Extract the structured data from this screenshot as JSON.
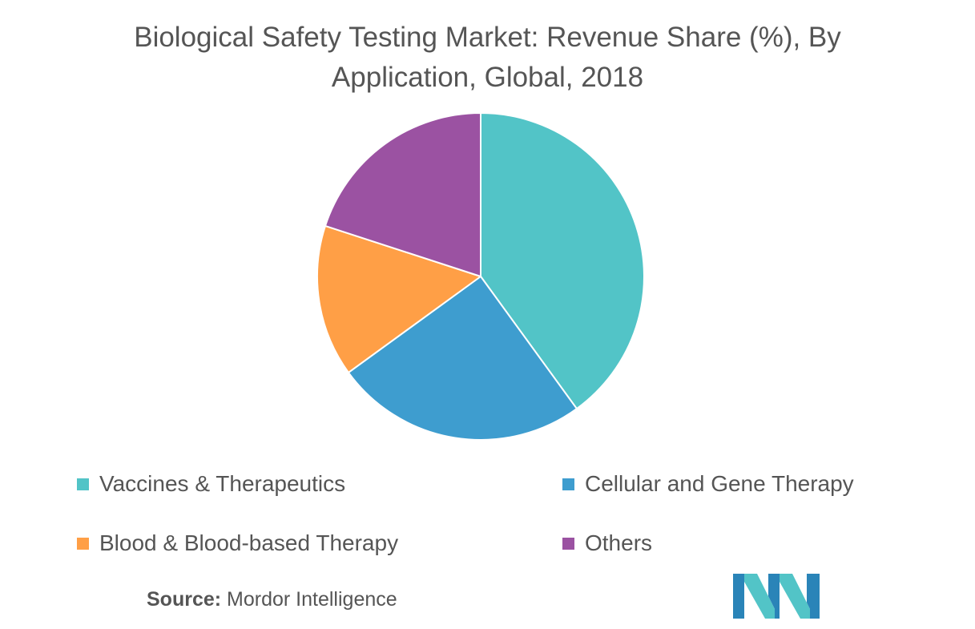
{
  "chart_data": {
    "type": "pie",
    "title": "Biological Safety Testing Market: Revenue Share (%), By Application, Global, 2018",
    "title_lines": [
      "Biological Safety Testing Market: Revenue Share (%), By",
      "Application, Global, 2018"
    ],
    "start_angle_deg": 0,
    "direction": "clockwise",
    "legend_position": "bottom",
    "slices": [
      {
        "label": "Vaccines & Therapeutics",
        "value": 40,
        "color": "#52C4C7"
      },
      {
        "label": "Cellular and Gene Therapy",
        "value": 25,
        "color": "#3E9DCF"
      },
      {
        "label": "Blood & Blood-based Therapy",
        "value": 15,
        "color": "#FF9F46"
      },
      {
        "label": "Others",
        "value": 20,
        "color": "#9B52A2"
      }
    ]
  },
  "source": {
    "label": "Source:",
    "text": "Mordor Intelligence"
  },
  "logo": {
    "icon": "mordor-intelligence-logo-icon",
    "colors": [
      "#2A84B8",
      "#52C4C7"
    ]
  }
}
